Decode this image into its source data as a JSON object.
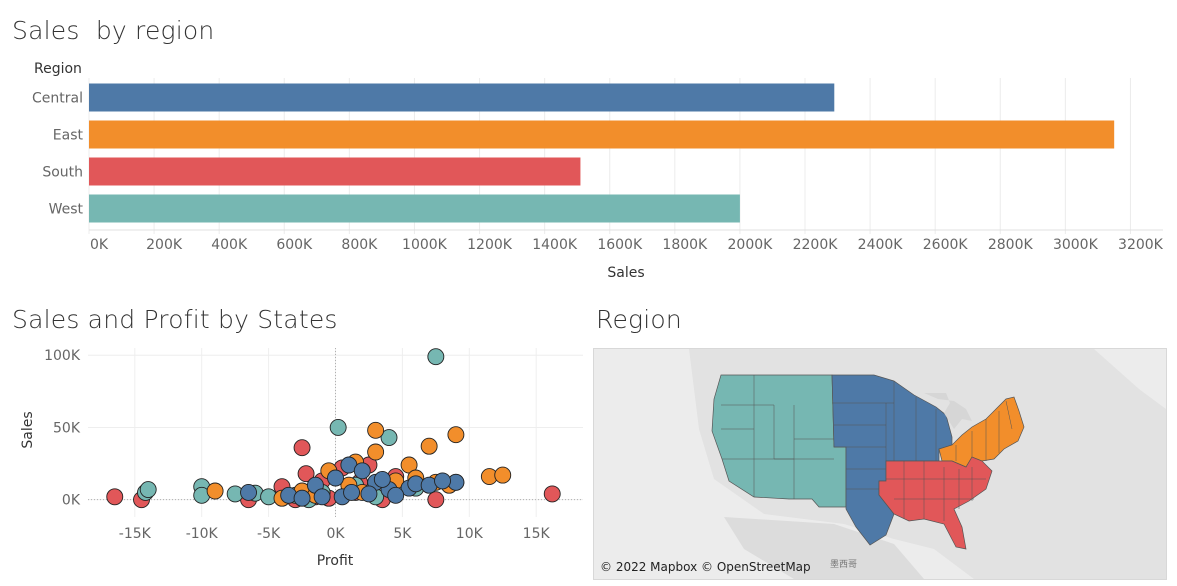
{
  "dashboard": {
    "bar_title": "Sales  by region",
    "scatter_title": "Sales and Profit by States",
    "map_title": "Region",
    "map_attribution": "© 2022 Mapbox © OpenStreetMap",
    "map_place_label": "墨西哥"
  },
  "colors": {
    "Central": "#4e79a7",
    "East": "#f28e2b",
    "South": "#e15759",
    "West": "#76b7b2"
  },
  "chart_data": [
    {
      "type": "bar",
      "orientation": "horizontal",
      "title": "Sales  by region",
      "row_header": "Region",
      "categories": [
        "Central",
        "East",
        "South",
        "West"
      ],
      "values": [
        2290000,
        3150000,
        1510000,
        2000000
      ],
      "xlabel": "Sales",
      "xlim": [
        0,
        3300000
      ],
      "xticks": [
        "0K",
        "200K",
        "400K",
        "600K",
        "800K",
        "1000K",
        "1200K",
        "1400K",
        "1600K",
        "1800K",
        "2000K",
        "2200K",
        "2400K",
        "2600K",
        "2800K",
        "3000K",
        "3200K"
      ],
      "xtick_values": [
        0,
        200000,
        400000,
        600000,
        800000,
        1000000,
        1200000,
        1400000,
        1600000,
        1800000,
        2000000,
        2200000,
        2400000,
        2600000,
        2800000,
        3000000,
        3200000
      ],
      "grid": true
    },
    {
      "type": "scatter",
      "title": "Sales and Profit by States",
      "xlabel": "Profit",
      "ylabel": "Sales",
      "xlim": [
        -18500,
        18500
      ],
      "ylim": [
        -12000,
        105000
      ],
      "xticks": [
        "-15K",
        "-10K",
        "-5K",
        "0K",
        "5K",
        "10K",
        "15K"
      ],
      "xtick_values": [
        -15000,
        -10000,
        -5000,
        0,
        5000,
        10000,
        15000
      ],
      "yticks": [
        "0K",
        "50K",
        "100K"
      ],
      "ytick_values": [
        0,
        50000,
        100000
      ],
      "grid": true,
      "series": [
        {
          "name": "South",
          "points": [
            [
              -16500,
              2000
            ],
            [
              -14500,
              0
            ],
            [
              -2500,
              36000
            ],
            [
              -2200,
              18000
            ],
            [
              -1000,
              13000
            ],
            [
              -1500,
              2000
            ],
            [
              -500,
              1000
            ],
            [
              500,
              22000
            ],
            [
              1500,
              5000
            ],
            [
              2500,
              24000
            ],
            [
              3500,
              0
            ],
            [
              -3000,
              0
            ],
            [
              7500,
              0
            ],
            [
              16200,
              4000
            ],
            [
              -6500,
              0
            ],
            [
              -4000,
              9000
            ],
            [
              4500,
              16000
            ],
            [
              1800,
              12000
            ]
          ]
        },
        {
          "name": "West",
          "points": [
            [
              -14200,
              5000
            ],
            [
              -14000,
              7000
            ],
            [
              -10000,
              9000
            ],
            [
              -10000,
              3000
            ],
            [
              -7500,
              4000
            ],
            [
              -6000,
              4500
            ],
            [
              -3000,
              3000
            ],
            [
              200,
              50000
            ],
            [
              4000,
              43000
            ],
            [
              7500,
              99000
            ],
            [
              -5000,
              2000
            ],
            [
              -1000,
              5000
            ],
            [
              1500,
              10000
            ],
            [
              6000,
              8000
            ],
            [
              9000,
              12000
            ],
            [
              -2000,
              0
            ],
            [
              3000,
              2000
            ]
          ]
        },
        {
          "name": "East",
          "points": [
            [
              -9000,
              6000
            ],
            [
              -2500,
              6000
            ],
            [
              -1500,
              3000
            ],
            [
              -500,
              20000
            ],
            [
              1500,
              26000
            ],
            [
              3000,
              33000
            ],
            [
              3000,
              48000
            ],
            [
              5500,
              24000
            ],
            [
              7500,
              12000
            ],
            [
              7000,
              37000
            ],
            [
              9000,
              45000
            ],
            [
              11500,
              16000
            ],
            [
              12500,
              17000
            ],
            [
              1000,
              10000
            ],
            [
              4500,
              13000
            ],
            [
              6000,
              15000
            ],
            [
              8500,
              10000
            ],
            [
              2000,
              5000
            ],
            [
              -4000,
              1000
            ]
          ]
        },
        {
          "name": "Central",
          "points": [
            [
              -6500,
              5000
            ],
            [
              -3500,
              3000
            ],
            [
              -2500,
              1000
            ],
            [
              -1500,
              10000
            ],
            [
              0,
              15000
            ],
            [
              1000,
              24000
            ],
            [
              2000,
              20000
            ],
            [
              500,
              2000
            ],
            [
              3000,
              12000
            ],
            [
              4000,
              7000
            ],
            [
              5500,
              8000
            ],
            [
              6000,
              11000
            ],
            [
              9000,
              12000
            ],
            [
              2500,
              4000
            ],
            [
              3500,
              14000
            ],
            [
              -1000,
              2000
            ],
            [
              1200,
              5000
            ],
            [
              4500,
              3000
            ],
            [
              7000,
              10000
            ],
            [
              8000,
              13000
            ]
          ]
        }
      ]
    }
  ]
}
